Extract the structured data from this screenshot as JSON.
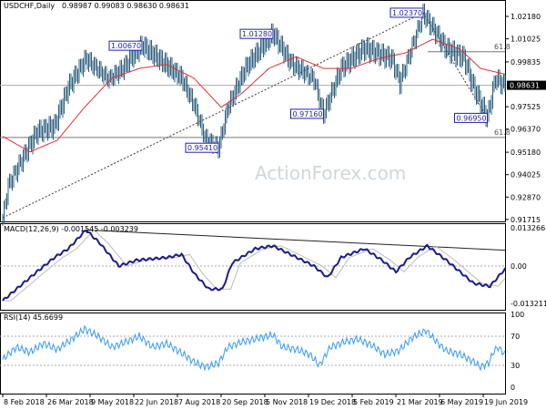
{
  "header": {
    "symbol": "USDCHF,Daily",
    "ohlc": "0.98987 0.99083 0.98630 0.98631"
  },
  "watermark": "ActionForex.com",
  "colors": {
    "candle": "#2e5f7f",
    "ma": "#e03030",
    "macd": "#1a1a8c",
    "signal": "#bbbbbb",
    "rsi": "#3399ff",
    "trend": "#000000"
  },
  "chart_data": [
    {
      "type": "candlestick",
      "title": "USDCHF,Daily",
      "current_price_label": "0.98631",
      "y_ticks": [
        "1.02180",
        "1.01025",
        "0.99835",
        "0.97525",
        "0.96370",
        "0.95180",
        "0.94025",
        "0.92870",
        "0.91715"
      ],
      "y_tick_values": [
        1.0218,
        1.01025,
        0.99835,
        0.97525,
        0.9637,
        0.9518,
        0.94025,
        0.9287,
        0.91715
      ],
      "ylim": [
        0.91715,
        1.0218
      ],
      "x_ticks": [
        "8 Feb 2018",
        "26 Mar 2018",
        "9 May 2018",
        "22 Jun 2018",
        "7 Aug 2018",
        "20 Sep 2018",
        "5 Nov 2018",
        "19 Dec 2018",
        "5 Feb 2019",
        "21 Mar 2019",
        "6 May 2019",
        "19 Jun 2019"
      ],
      "close_keypoints": [
        [
          0,
          0.918
        ],
        [
          4,
          0.935
        ],
        [
          25,
          0.962
        ],
        [
          38,
          0.965
        ],
        [
          48,
          0.985
        ],
        [
          61,
          1.0
        ],
        [
          78,
          0.99
        ],
        [
          88,
          0.995
        ],
        [
          102,
          1.0067
        ],
        [
          131,
          0.99
        ],
        [
          141,
          0.975
        ],
        [
          148,
          0.96
        ],
        [
          158,
          0.9541
        ],
        [
          165,
          0.975
        ],
        [
          178,
          0.995
        ],
        [
          198,
          1.0128
        ],
        [
          211,
          0.998
        ],
        [
          228,
          0.99
        ],
        [
          235,
          0.9716
        ],
        [
          248,
          0.995
        ],
        [
          265,
          1.005
        ],
        [
          285,
          1.0
        ],
        [
          291,
          0.988
        ],
        [
          308,
          1.0237
        ],
        [
          325,
          1.005
        ],
        [
          338,
          1.0
        ],
        [
          345,
          0.985
        ],
        [
          355,
          0.9695
        ],
        [
          361,
          0.99
        ],
        [
          368,
          0.9863
        ]
      ],
      "ma_keypoints": [
        [
          0,
          0.96
        ],
        [
          20,
          0.952
        ],
        [
          40,
          0.958
        ],
        [
          60,
          0.975
        ],
        [
          80,
          0.99
        ],
        [
          100,
          0.995
        ],
        [
          120,
          0.997
        ],
        [
          140,
          0.99
        ],
        [
          160,
          0.975
        ],
        [
          175,
          0.982
        ],
        [
          195,
          0.995
        ],
        [
          215,
          1.001
        ],
        [
          235,
          0.995
        ],
        [
          255,
          0.995
        ],
        [
          275,
          1.0
        ],
        [
          295,
          1.003
        ],
        [
          315,
          1.01
        ],
        [
          335,
          1.005
        ],
        [
          350,
          0.995
        ],
        [
          368,
          0.992
        ]
      ],
      "annotations": [
        {
          "text": "1.00670",
          "price": 1.0067,
          "day": 102
        },
        {
          "text": "1.01280",
          "price": 1.0128,
          "day": 198
        },
        {
          "text": "1.02370",
          "price": 1.0237,
          "day": 308
        },
        {
          "text": "0.97160",
          "price": 0.9716,
          "day": 235
        },
        {
          "text": "0.95410",
          "price": 0.9541,
          "day": 158
        },
        {
          "text": "0.96950",
          "price": 0.9695,
          "day": 355
        }
      ],
      "fib_levels": [
        {
          "label": "61.8",
          "price": 1.0036
        },
        {
          "label": "61.8",
          "price": 0.9594
        }
      ]
    },
    {
      "type": "line",
      "title": "MACD(12,26,9) -0.001545 -0.003239",
      "y_ticks": [
        "0.013266",
        "0.00",
        "-0.013211"
      ],
      "ylim": [
        -0.013211,
        0.013266
      ],
      "macd_keypoints": [
        [
          0,
          -0.012
        ],
        [
          25,
          -0.002
        ],
        [
          38,
          0.003
        ],
        [
          48,
          0.006
        ],
        [
          61,
          0.0125
        ],
        [
          71,
          0.008
        ],
        [
          85,
          0.0
        ],
        [
          98,
          0.002
        ],
        [
          121,
          0.003
        ],
        [
          131,
          0.004
        ],
        [
          141,
          -0.003
        ],
        [
          151,
          -0.008
        ],
        [
          161,
          -0.008
        ],
        [
          168,
          0.001
        ],
        [
          185,
          0.006
        ],
        [
          198,
          0.007
        ],
        [
          211,
          0.004
        ],
        [
          228,
          0.0
        ],
        [
          238,
          -0.004
        ],
        [
          248,
          0.003
        ],
        [
          265,
          0.006
        ],
        [
          278,
          0.002
        ],
        [
          288,
          -0.002
        ],
        [
          298,
          0.003
        ],
        [
          311,
          0.007
        ],
        [
          325,
          0.002
        ],
        [
          345,
          -0.006
        ],
        [
          357,
          -0.007
        ],
        [
          368,
          -0.001
        ]
      ],
      "trendline": [
        [
          61,
          0.0125
        ],
        [
          368,
          0.0055
        ]
      ]
    },
    {
      "type": "line",
      "title": "RSI(14) 45.6699",
      "y_ticks": [
        "100",
        "70",
        "30",
        "0"
      ],
      "ylim": [
        0,
        100
      ],
      "rsi_keypoints": [
        [
          0,
          38
        ],
        [
          10,
          55
        ],
        [
          20,
          48
        ],
        [
          30,
          60
        ],
        [
          40,
          52
        ],
        [
          50,
          65
        ],
        [
          60,
          80
        ],
        [
          70,
          70
        ],
        [
          80,
          55
        ],
        [
          90,
          62
        ],
        [
          100,
          70
        ],
        [
          110,
          55
        ],
        [
          120,
          60
        ],
        [
          130,
          48
        ],
        [
          140,
          35
        ],
        [
          145,
          30
        ],
        [
          150,
          28
        ],
        [
          158,
          33
        ],
        [
          165,
          55
        ],
        [
          175,
          62
        ],
        [
          185,
          66
        ],
        [
          198,
          72
        ],
        [
          205,
          55
        ],
        [
          215,
          52
        ],
        [
          225,
          45
        ],
        [
          232,
          30
        ],
        [
          240,
          55
        ],
        [
          250,
          62
        ],
        [
          260,
          66
        ],
        [
          270,
          58
        ],
        [
          280,
          45
        ],
        [
          290,
          50
        ],
        [
          300,
          68
        ],
        [
          310,
          78
        ],
        [
          318,
          62
        ],
        [
          325,
          50
        ],
        [
          335,
          45
        ],
        [
          345,
          35
        ],
        [
          350,
          28
        ],
        [
          356,
          33
        ],
        [
          360,
          50
        ],
        [
          363,
          55
        ],
        [
          368,
          45
        ]
      ]
    }
  ]
}
